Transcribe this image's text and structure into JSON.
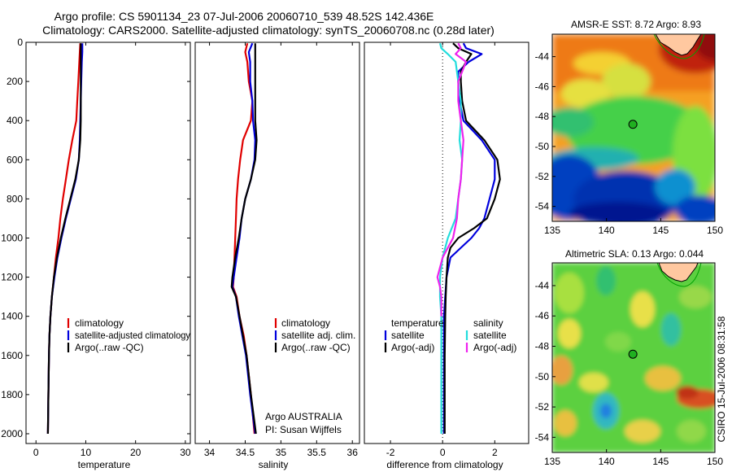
{
  "header": {
    "line1": "Argo profile: CS 5901134_23 07-Jul-2006 20060710_539 48.52S 142.436E",
    "line2": "Climatology: CARS2000. Satellite-adjusted climatology: synTS_20060708.nc (0.28d later)"
  },
  "side_label": "CSIRO 15-Jul-2006 08:31:58",
  "colors": {
    "climatology": "#e00000",
    "satellite": "#0000dd",
    "argo": "#000000",
    "salinity_satellite": "#22dddd",
    "salinity_argo": "#ee22ee"
  },
  "chart_data": [
    {
      "type": "line",
      "id": "temperature",
      "xlabel": "temperature",
      "ylabel": "",
      "xlim": [
        -2,
        31
      ],
      "ylim": [
        2050,
        0
      ],
      "xticks": [
        0,
        10,
        20,
        30
      ],
      "yticks": [
        0,
        200,
        400,
        600,
        800,
        1000,
        1200,
        1400,
        1600,
        1800,
        2000
      ],
      "legend": [
        "climatology",
        "satellite-adjusted climatology",
        "Argo(..raw -QC)"
      ],
      "series": [
        {
          "name": "climatology",
          "color": "#e00000",
          "depth": [
            5,
            50,
            100,
            200,
            300,
            400,
            500,
            600,
            700,
            800,
            900,
            1000,
            1100,
            1200,
            1300,
            1400,
            1500,
            1600,
            1800,
            2000
          ],
          "values": [
            8.9,
            8.8,
            8.7,
            8.5,
            8.3,
            8.1,
            7.3,
            6.6,
            6.0,
            5.4,
            4.9,
            4.5,
            4.0,
            3.6,
            3.2,
            2.9,
            2.7,
            2.6,
            2.5,
            2.4
          ]
        },
        {
          "name": "satellite-adjusted climatology",
          "color": "#0000dd",
          "depth": [
            5,
            50,
            100,
            200,
            300,
            400,
            500,
            600,
            700,
            800,
            900,
            1000,
            1100,
            1200,
            1300,
            1400,
            1500,
            1600,
            1800,
            2000
          ],
          "values": [
            9.3,
            9.3,
            9.2,
            9.1,
            9.0,
            8.9,
            8.8,
            8.6,
            8.0,
            7.0,
            6.0,
            5.1,
            4.3,
            3.7,
            3.2,
            2.9,
            2.7,
            2.6,
            2.5,
            2.4
          ]
        },
        {
          "name": "Argo(..raw -QC)",
          "color": "#000000",
          "depth": [
            5,
            50,
            100,
            200,
            300,
            400,
            500,
            600,
            700,
            800,
            900,
            1000,
            1100,
            1200,
            1300,
            1400,
            1500,
            1600,
            1800,
            2000
          ],
          "values": [
            9.0,
            9.0,
            9.0,
            9.0,
            9.0,
            9.0,
            8.9,
            8.6,
            7.9,
            6.9,
            5.9,
            5.0,
            4.2,
            3.6,
            3.2,
            2.9,
            2.7,
            2.6,
            2.5,
            2.4
          ]
        }
      ]
    },
    {
      "type": "line",
      "id": "salinity",
      "xlabel": "salinity",
      "ylabel": "",
      "xlim": [
        33.8,
        36.1
      ],
      "ylim": [
        2050,
        0
      ],
      "xticks": [
        34,
        34.5,
        35,
        35.5,
        36
      ],
      "legend": [
        "climatology",
        "satellite adj. clim.",
        "Argo(..raw -QC)"
      ],
      "annotation": [
        "Argo AUSTRALIA",
        "PI: Susan Wijffels"
      ],
      "series": [
        {
          "name": "climatology",
          "color": "#e00000",
          "depth": [
            5,
            50,
            100,
            200,
            300,
            400,
            500,
            600,
            700,
            800,
            900,
            1000,
            1100,
            1200,
            1250,
            1300,
            1400,
            1500,
            1600,
            1800,
            2000
          ],
          "values": [
            34.53,
            34.5,
            34.53,
            34.55,
            34.6,
            34.58,
            34.47,
            34.43,
            34.4,
            34.38,
            34.37,
            34.36,
            34.35,
            34.34,
            34.33,
            34.38,
            34.42,
            34.48,
            34.52,
            34.58,
            34.63
          ]
        },
        {
          "name": "satellite adj. clim.",
          "color": "#0000dd",
          "depth": [
            5,
            50,
            100,
            200,
            300,
            400,
            500,
            600,
            700,
            800,
            900,
            1000,
            1100,
            1200,
            1250,
            1300,
            1400,
            1500,
            1600,
            1800,
            2000
          ],
          "values": [
            34.6,
            34.55,
            34.57,
            34.57,
            34.6,
            34.61,
            34.64,
            34.63,
            34.58,
            34.5,
            34.45,
            34.42,
            34.38,
            34.34,
            34.32,
            34.37,
            34.41,
            34.46,
            34.51,
            34.57,
            34.64
          ]
        },
        {
          "name": "Argo(..raw -QC)",
          "color": "#000000",
          "depth": [
            5,
            50,
            100,
            200,
            300,
            400,
            500,
            600,
            700,
            800,
            900,
            1000,
            1100,
            1200,
            1250,
            1300,
            1400,
            1500,
            1600,
            1800,
            2000
          ],
          "values": [
            34.64,
            34.64,
            34.64,
            34.64,
            34.64,
            34.64,
            34.66,
            34.64,
            34.58,
            34.5,
            34.45,
            34.41,
            34.36,
            34.32,
            34.31,
            34.37,
            34.42,
            34.47,
            34.52,
            34.58,
            34.65
          ]
        }
      ]
    },
    {
      "type": "line",
      "id": "difference",
      "xlabel": "difference from climatology",
      "ylabel": "",
      "xlim": [
        -3,
        3.3
      ],
      "ylim": [
        2050,
        0
      ],
      "xticks": [
        -2,
        0,
        2
      ],
      "zero_line": true,
      "legend_columns": [
        {
          "heading": "temperature",
          "entries": [
            "satellite",
            "Argo(-adj)"
          ]
        },
        {
          "heading": "salinity",
          "entries": [
            "satellite",
            "Argo(-adj)"
          ]
        }
      ],
      "series": [
        {
          "name": "temperature satellite",
          "color": "#0000dd",
          "depth": [
            5,
            30,
            60,
            100,
            150,
            200,
            300,
            400,
            500,
            600,
            700,
            800,
            900,
            950,
            1000,
            1050,
            1100,
            1200,
            1300,
            1400,
            1600,
            1800,
            2000
          ],
          "values": [
            0.8,
            0.9,
            1.5,
            1.0,
            0.6,
            0.6,
            0.65,
            0.8,
            1.5,
            2.0,
            2.0,
            1.8,
            1.6,
            1.4,
            1.1,
            0.7,
            0.3,
            0.15,
            0.1,
            0.05,
            0.05,
            0.05,
            0.05
          ]
        },
        {
          "name": "temperature Argo(-adj)",
          "color": "#000000",
          "depth": [
            5,
            30,
            60,
            100,
            150,
            200,
            300,
            400,
            500,
            600,
            700,
            800,
            900,
            950,
            1000,
            1050,
            1100,
            1200,
            1300,
            1400,
            1600,
            1800,
            2000
          ],
          "values": [
            0.4,
            0.6,
            1.1,
            0.9,
            0.7,
            0.7,
            0.75,
            0.9,
            1.6,
            2.1,
            2.2,
            2.0,
            1.7,
            1.2,
            0.6,
            0.3,
            0.2,
            0.15,
            0.12,
            0.1,
            0.08,
            0.08,
            0.08
          ]
        },
        {
          "name": "salinity satellite",
          "color": "#22dddd",
          "depth": [
            5,
            30,
            60,
            100,
            200,
            300,
            400,
            500,
            600,
            700,
            800,
            900,
            1000,
            1100,
            1200,
            1300,
            1400,
            1600,
            1800,
            2000
          ],
          "values": [
            -0.1,
            -0.05,
            0.2,
            0.5,
            0.6,
            0.7,
            0.7,
            0.65,
            0.75,
            0.7,
            0.6,
            0.5,
            0.2,
            0.0,
            -0.1,
            -0.1,
            -0.05,
            -0.05,
            -0.05,
            -0.05
          ]
        },
        {
          "name": "salinity Argo(-adj)",
          "color": "#ee22ee",
          "depth": [
            5,
            30,
            60,
            100,
            200,
            300,
            400,
            500,
            600,
            700,
            800,
            900,
            1000,
            1100,
            1200,
            1250,
            1300,
            1400
          ],
          "values": [
            0.6,
            0.7,
            0.5,
            0.9,
            0.6,
            0.6,
            0.7,
            0.8,
            0.75,
            0.7,
            0.6,
            0.55,
            0.4,
            0.0,
            -0.2,
            -0.1,
            -0.05,
            -0.05
          ]
        }
      ]
    },
    {
      "type": "heatmap",
      "id": "sst_map",
      "title": "AMSR-E SST: 8.72 Argo: 8.93",
      "xlim": [
        135,
        150
      ],
      "ylim": [
        -55,
        -42.5
      ],
      "xticks": [
        135,
        140,
        145,
        150
      ],
      "yticks": [
        -44,
        -46,
        -48,
        -50,
        -52,
        -54
      ],
      "marker": {
        "lon": 142.436,
        "lat": -48.52
      }
    },
    {
      "type": "heatmap",
      "id": "sla_map",
      "title": "Altimetric SLA: 0.13 Argo: 0.044",
      "xlim": [
        135,
        150
      ],
      "ylim": [
        -55,
        -42.5
      ],
      "xticks": [
        135,
        140,
        145,
        150
      ],
      "yticks": [
        -44,
        -46,
        -48,
        -50,
        -52,
        -54
      ],
      "marker": {
        "lon": 142.436,
        "lat": -48.52
      }
    }
  ]
}
